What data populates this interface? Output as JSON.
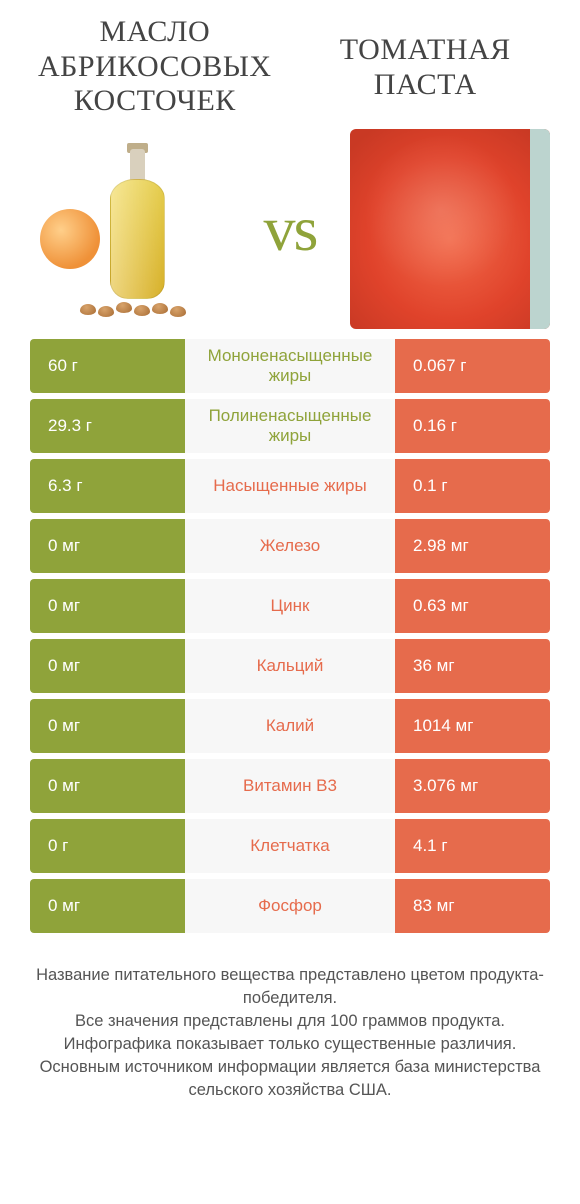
{
  "colors": {
    "green": "#8fa33a",
    "orange": "#e66b4c",
    "mid_bg": "#f7f7f7",
    "page_bg": "#ffffff",
    "text": "#444444",
    "footer_text": "#555555"
  },
  "typography": {
    "title_font": "Georgia, serif",
    "title_size_pt": 22,
    "vs_size_pt": 48,
    "cell_size_pt": 13,
    "footer_size_pt": 12
  },
  "product_left": {
    "title": "МАСЛО АБРИКОСОВЫХ КОСТОЧЕК"
  },
  "product_right": {
    "title": "ТОМАТНАЯ ПАСТА"
  },
  "vs_label": "vs",
  "rows": [
    {
      "nutrient": "Мононенасыщенные жиры",
      "left": "60 г",
      "right": "0.067 г",
      "winner": "left"
    },
    {
      "nutrient": "Полиненасыщенные жиры",
      "left": "29.3 г",
      "right": "0.16 г",
      "winner": "left"
    },
    {
      "nutrient": "Насыщенные жиры",
      "left": "6.3 г",
      "right": "0.1 г",
      "winner": "right"
    },
    {
      "nutrient": "Железо",
      "left": "0 мг",
      "right": "2.98 мг",
      "winner": "right"
    },
    {
      "nutrient": "Цинк",
      "left": "0 мг",
      "right": "0.63 мг",
      "winner": "right"
    },
    {
      "nutrient": "Кальций",
      "left": "0 мг",
      "right": "36 мг",
      "winner": "right"
    },
    {
      "nutrient": "Калий",
      "left": "0 мг",
      "right": "1014 мг",
      "winner": "right"
    },
    {
      "nutrient": "Витамин B3",
      "left": "0 мг",
      "right": "3.076 мг",
      "winner": "right"
    },
    {
      "nutrient": "Клетчатка",
      "left": "0 г",
      "right": "4.1 г",
      "winner": "right"
    },
    {
      "nutrient": "Фосфор",
      "left": "0 мг",
      "right": "83 мг",
      "winner": "right"
    }
  ],
  "footer": {
    "line1": "Название питательного вещества представлено цветом продукта-победителя.",
    "line2": "Все значения представлены для 100 граммов продукта.",
    "line3": "Инфографика показывает только существенные различия.",
    "line4": "Основным источником информации является база министерства сельского хозяйства США."
  }
}
